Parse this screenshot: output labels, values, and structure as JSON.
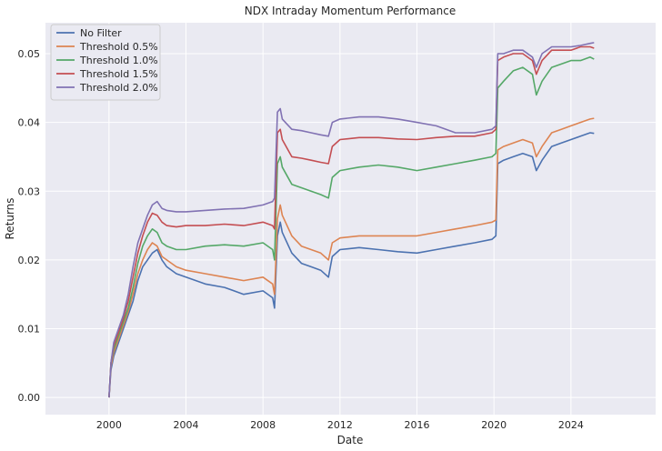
{
  "chart_data": {
    "type": "line",
    "title": "NDX Intraday Momentum Performance",
    "xlabel": "Date",
    "ylabel": "Returns",
    "x_tick_labels": [
      "2000",
      "2004",
      "2008",
      "2012",
      "2016",
      "2020",
      "2024"
    ],
    "x_ticks": [
      2000,
      2004,
      2008,
      2012,
      2016,
      2020,
      2024
    ],
    "y_tick_labels": [
      "0.00",
      "0.01",
      "0.02",
      "0.03",
      "0.04",
      "0.05"
    ],
    "y_ticks": [
      0.0,
      0.01,
      0.02,
      0.03,
      0.04,
      0.05
    ],
    "xlim": [
      1996.7,
      2028.4
    ],
    "ylim": [
      -0.0025,
      0.0545
    ],
    "grid": true,
    "legend_position": "top-left",
    "x": [
      2000.0,
      2000.1,
      2000.25,
      2000.5,
      2000.75,
      2001.0,
      2001.25,
      2001.5,
      2001.75,
      2002.0,
      2002.25,
      2002.5,
      2002.75,
      2003.0,
      2003.5,
      2004.0,
      2005.0,
      2006.0,
      2007.0,
      2008.0,
      2008.5,
      2008.6,
      2008.75,
      2008.9,
      2009.0,
      2009.5,
      2010.0,
      2010.5,
      2011.0,
      2011.4,
      2011.6,
      2012.0,
      2013.0,
      2014.0,
      2015.0,
      2016.0,
      2017.0,
      2018.0,
      2019.0,
      2019.9,
      2020.1,
      2020.2,
      2020.5,
      2021.0,
      2021.5,
      2022.0,
      2022.2,
      2022.5,
      2023.0,
      2023.5,
      2024.0,
      2024.5,
      2025.0,
      2025.2
    ],
    "series": [
      {
        "name": "No Filter",
        "color": "#4c72b0",
        "values": [
          0.0,
          0.004,
          0.006,
          0.008,
          0.01,
          0.012,
          0.014,
          0.017,
          0.019,
          0.02,
          0.021,
          0.0215,
          0.02,
          0.019,
          0.018,
          0.0175,
          0.0165,
          0.016,
          0.015,
          0.0155,
          0.0145,
          0.013,
          0.0235,
          0.0255,
          0.024,
          0.021,
          0.0195,
          0.019,
          0.0185,
          0.0175,
          0.0205,
          0.0215,
          0.0218,
          0.0215,
          0.0212,
          0.021,
          0.0215,
          0.022,
          0.0225,
          0.023,
          0.0235,
          0.034,
          0.0345,
          0.035,
          0.0355,
          0.035,
          0.033,
          0.0345,
          0.0365,
          0.037,
          0.0375,
          0.038,
          0.0385,
          0.0384
        ]
      },
      {
        "name": "Threshold 0.5%",
        "color": "#dd8452",
        "values": [
          0.0,
          0.0045,
          0.0065,
          0.0085,
          0.0105,
          0.0125,
          0.015,
          0.018,
          0.02,
          0.0215,
          0.0225,
          0.022,
          0.0205,
          0.02,
          0.019,
          0.0185,
          0.018,
          0.0175,
          0.017,
          0.0175,
          0.0165,
          0.015,
          0.026,
          0.028,
          0.0265,
          0.0235,
          0.022,
          0.0215,
          0.021,
          0.02,
          0.0225,
          0.0232,
          0.0235,
          0.0235,
          0.0235,
          0.0235,
          0.024,
          0.0245,
          0.025,
          0.0255,
          0.0258,
          0.036,
          0.0365,
          0.037,
          0.0375,
          0.037,
          0.035,
          0.0365,
          0.0385,
          0.039,
          0.0395,
          0.04,
          0.0405,
          0.0406
        ]
      },
      {
        "name": "Threshold 1.0%",
        "color": "#55a868",
        "values": [
          0.0,
          0.005,
          0.007,
          0.009,
          0.011,
          0.013,
          0.016,
          0.0195,
          0.022,
          0.0235,
          0.0245,
          0.024,
          0.0225,
          0.022,
          0.0215,
          0.0215,
          0.022,
          0.0222,
          0.022,
          0.0225,
          0.0215,
          0.02,
          0.034,
          0.035,
          0.0335,
          0.031,
          0.0305,
          0.03,
          0.0295,
          0.029,
          0.032,
          0.033,
          0.0335,
          0.0338,
          0.0335,
          0.033,
          0.0335,
          0.034,
          0.0345,
          0.035,
          0.0355,
          0.045,
          0.046,
          0.0475,
          0.048,
          0.047,
          0.044,
          0.046,
          0.048,
          0.0485,
          0.049,
          0.049,
          0.0495,
          0.0492
        ]
      },
      {
        "name": "Threshold 1.5%",
        "color": "#c44e52",
        "values": [
          0.0,
          0.005,
          0.0075,
          0.0095,
          0.0115,
          0.014,
          0.0175,
          0.021,
          0.0235,
          0.0255,
          0.0268,
          0.0265,
          0.0255,
          0.025,
          0.0248,
          0.025,
          0.025,
          0.0252,
          0.025,
          0.0255,
          0.025,
          0.0245,
          0.0385,
          0.039,
          0.0375,
          0.035,
          0.0348,
          0.0345,
          0.0342,
          0.034,
          0.0365,
          0.0375,
          0.0378,
          0.0378,
          0.0376,
          0.0375,
          0.0378,
          0.038,
          0.038,
          0.0385,
          0.039,
          0.049,
          0.0495,
          0.05,
          0.05,
          0.049,
          0.047,
          0.049,
          0.0505,
          0.0505,
          0.0505,
          0.051,
          0.051,
          0.0508
        ]
      },
      {
        "name": "Threshold 2.0%",
        "color": "#8172b3",
        "values": [
          0.0,
          0.005,
          0.008,
          0.01,
          0.012,
          0.015,
          0.019,
          0.0225,
          0.0245,
          0.0265,
          0.028,
          0.0285,
          0.0275,
          0.0272,
          0.027,
          0.027,
          0.0272,
          0.0274,
          0.0275,
          0.028,
          0.0285,
          0.029,
          0.0415,
          0.042,
          0.0405,
          0.039,
          0.0388,
          0.0385,
          0.0382,
          0.038,
          0.04,
          0.0405,
          0.0408,
          0.0408,
          0.0405,
          0.04,
          0.0395,
          0.0385,
          0.0385,
          0.039,
          0.0395,
          0.05,
          0.05,
          0.0505,
          0.0505,
          0.0495,
          0.048,
          0.05,
          0.051,
          0.051,
          0.051,
          0.0512,
          0.0515,
          0.0516
        ]
      }
    ]
  }
}
